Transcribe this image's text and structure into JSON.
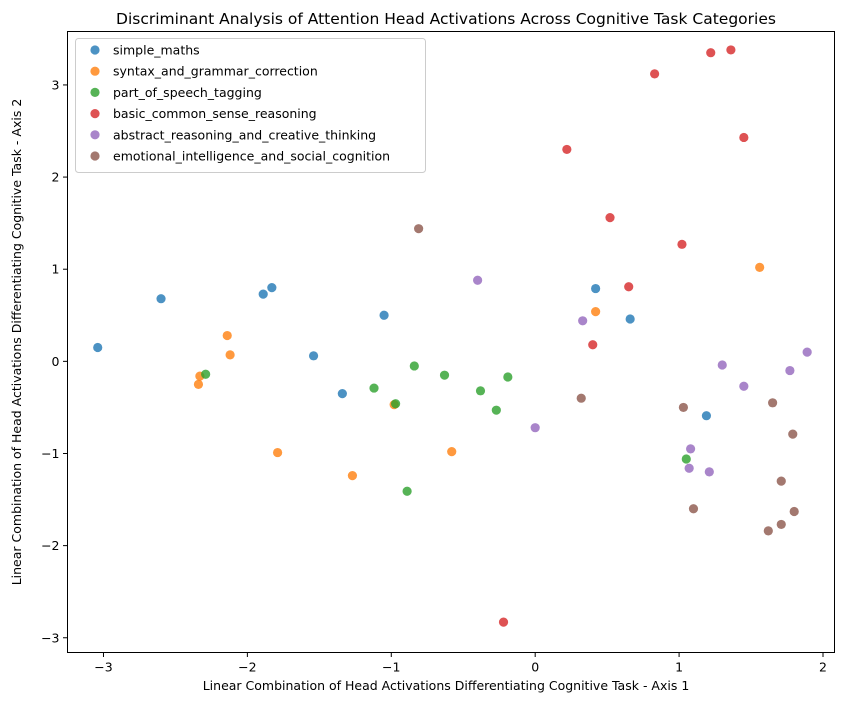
{
  "chart_data": {
    "type": "scatter",
    "title": "Discriminant Analysis of Attention Head Activations Across Cognitive Task Categories",
    "xlabel": "Linear Combination of Head Activations Differentiating Cognitive Task - Axis 1",
    "ylabel": "Linear Combination of Head Activations Differentiating Cognitive Task - Axis 2",
    "xlim": [
      -3.25,
      2.08
    ],
    "ylim": [
      -3.16,
      3.58
    ],
    "xticks": [
      -3,
      -2,
      -1,
      0,
      1,
      2
    ],
    "yticks": [
      -3,
      -2,
      -1,
      0,
      1,
      2,
      3
    ],
    "grid": false,
    "legend_position": "top-left",
    "series": [
      {
        "name": "simple_maths",
        "color": "#1f77b4",
        "points": [
          [
            -3.04,
            0.15
          ],
          [
            -2.6,
            0.68
          ],
          [
            -1.89,
            0.73
          ],
          [
            -1.83,
            0.8
          ],
          [
            -1.54,
            0.06
          ],
          [
            -1.34,
            -0.35
          ],
          [
            -1.05,
            0.5
          ],
          [
            0.42,
            0.79
          ],
          [
            0.66,
            0.46
          ],
          [
            1.19,
            -0.59
          ]
        ]
      },
      {
        "name": "syntax_and_grammar_correction",
        "color": "#ff7f0e",
        "points": [
          [
            -2.34,
            -0.25
          ],
          [
            -2.33,
            -0.16
          ],
          [
            -2.14,
            0.28
          ],
          [
            -2.12,
            0.07
          ],
          [
            -1.79,
            -0.99
          ],
          [
            -1.27,
            -1.24
          ],
          [
            -0.98,
            -0.47
          ],
          [
            -0.58,
            -0.98
          ],
          [
            0.42,
            0.54
          ],
          [
            1.56,
            1.02
          ]
        ]
      },
      {
        "name": "part_of_speech_tagging",
        "color": "#2ca02c",
        "points": [
          [
            -2.29,
            -0.14
          ],
          [
            -1.12,
            -0.29
          ],
          [
            -0.97,
            -0.46
          ],
          [
            -0.89,
            -1.41
          ],
          [
            -0.84,
            -0.05
          ],
          [
            -0.63,
            -0.15
          ],
          [
            -0.38,
            -0.32
          ],
          [
            -0.27,
            -0.53
          ],
          [
            -0.19,
            -0.17
          ],
          [
            1.05,
            -1.06
          ]
        ]
      },
      {
        "name": "basic_common_sense_reasoning",
        "color": "#d62728",
        "points": [
          [
            -0.22,
            -2.83
          ],
          [
            0.22,
            2.3
          ],
          [
            0.4,
            0.18
          ],
          [
            0.52,
            1.56
          ],
          [
            0.65,
            0.81
          ],
          [
            0.83,
            3.12
          ],
          [
            1.02,
            1.27
          ],
          [
            1.22,
            3.35
          ],
          [
            1.36,
            3.38
          ],
          [
            1.45,
            2.43
          ]
        ]
      },
      {
        "name": "abstract_reasoning_and_creative_thinking",
        "color": "#9467bd",
        "points": [
          [
            -0.4,
            0.88
          ],
          [
            0.0,
            -0.72
          ],
          [
            0.33,
            0.44
          ],
          [
            1.07,
            -1.16
          ],
          [
            1.08,
            -0.95
          ],
          [
            1.21,
            -1.2
          ],
          [
            1.3,
            -0.04
          ],
          [
            1.45,
            -0.27
          ],
          [
            1.77,
            -0.1
          ],
          [
            1.89,
            0.1
          ]
        ]
      },
      {
        "name": "emotional_intelligence_and_social_cognition",
        "color": "#8c564b",
        "points": [
          [
            -0.81,
            1.44
          ],
          [
            0.32,
            -0.4
          ],
          [
            1.03,
            -0.5
          ],
          [
            1.1,
            -1.6
          ],
          [
            1.62,
            -1.84
          ],
          [
            1.65,
            -0.45
          ],
          [
            1.71,
            -1.3
          ],
          [
            1.71,
            -1.77
          ],
          [
            1.79,
            -0.79
          ],
          [
            1.8,
            -1.63
          ]
        ]
      }
    ]
  }
}
